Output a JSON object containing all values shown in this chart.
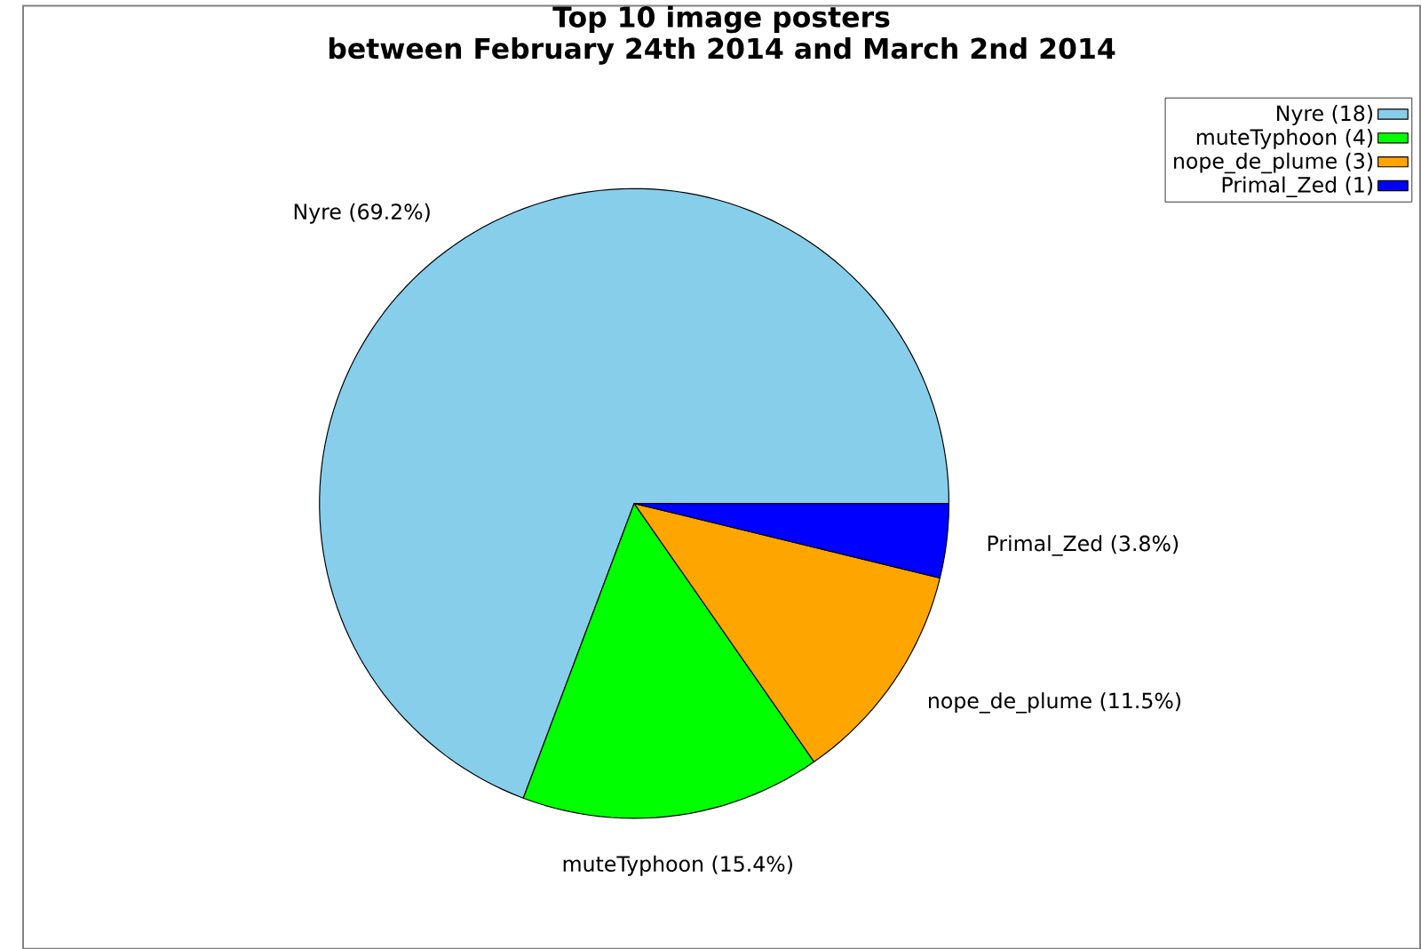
{
  "chart_data": {
    "type": "pie",
    "title": "Top 10 image posters",
    "subtitle": "between February 24th 2014 and March 2nd 2014",
    "categories": [
      "Nyre (18)",
      "muteTyphoon (4)",
      "nope_de_plume (3)",
      "Primal_Zed (1)"
    ],
    "values": [
      69.2,
      15.4,
      11.5,
      3.8
    ],
    "value_labels": [
      "Nyre (69.2%)",
      "muteTyphoon (15.4%)",
      "nope_de_plume (11.5%)",
      "Primal_Zed (3.8%)"
    ],
    "colors": [
      "#87ceeb",
      "#00ff00",
      "#ffa500",
      "#0000ff"
    ],
    "legend": "top right"
  }
}
